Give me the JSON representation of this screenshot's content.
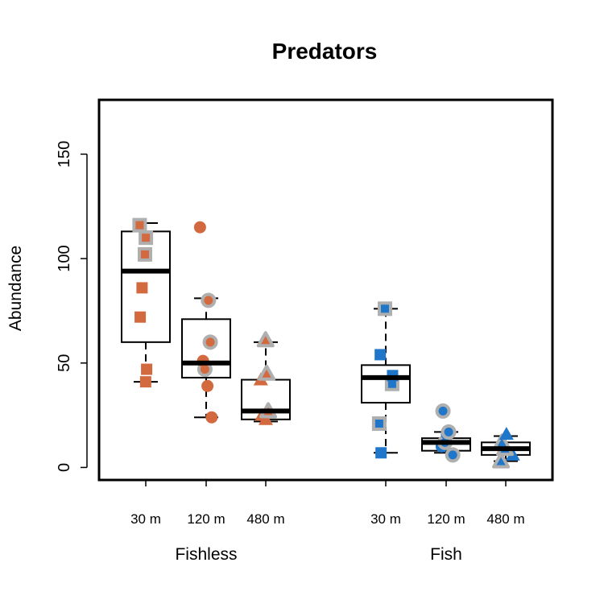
{
  "chart_data": {
    "type": "boxplot",
    "title": "Predators",
    "ylabel": "Abundance",
    "xlabel": "",
    "ylim": [
      -6,
      176
    ],
    "yticks": [
      0,
      50,
      100,
      150
    ],
    "grid": false,
    "colors": {
      "fishless": "#D2693F",
      "fish": "#2077C9",
      "highlight": "#AFAFAF"
    },
    "groups": [
      {
        "name": "Fishless",
        "color_key": "fishless",
        "boxes": [
          {
            "label": "30 m",
            "marker": "square",
            "min": 41,
            "q1": 60,
            "median": 94,
            "q3": 113,
            "max": 117,
            "points": [
              {
                "y": 41,
                "highlight": false
              },
              {
                "y": 47,
                "highlight": false
              },
              {
                "y": 72,
                "highlight": false
              },
              {
                "y": 86,
                "highlight": false
              },
              {
                "y": 102,
                "highlight": true
              },
              {
                "y": 110,
                "highlight": true
              },
              {
                "y": 116,
                "highlight": true
              }
            ]
          },
          {
            "label": "120 m",
            "marker": "circle",
            "min": 24,
            "q1": 43,
            "median": 50,
            "q3": 71,
            "max": 81,
            "points": [
              {
                "y": 24,
                "highlight": false
              },
              {
                "y": 39,
                "highlight": false
              },
              {
                "y": 47,
                "highlight": true
              },
              {
                "y": 51,
                "highlight": false
              },
              {
                "y": 60,
                "highlight": true
              },
              {
                "y": 80,
                "highlight": true
              },
              {
                "y": 115,
                "highlight": false
              }
            ]
          },
          {
            "label": "480 m",
            "marker": "triangle",
            "min": 22,
            "q1": 23,
            "median": 27,
            "q3": 42,
            "max": 60,
            "points": [
              {
                "y": 23,
                "highlight": false
              },
              {
                "y": 25,
                "highlight": false
              },
              {
                "y": 27,
                "highlight": true
              },
              {
                "y": 42,
                "highlight": false
              },
              {
                "y": 45,
                "highlight": true
              },
              {
                "y": 61,
                "highlight": true
              }
            ]
          }
        ]
      },
      {
        "name": "Fish",
        "color_key": "fish",
        "boxes": [
          {
            "label": "30 m",
            "marker": "square",
            "min": 7,
            "q1": 31,
            "median": 43,
            "q3": 49,
            "max": 76,
            "points": [
              {
                "y": 7,
                "highlight": false
              },
              {
                "y": 21,
                "highlight": true
              },
              {
                "y": 40,
                "highlight": true
              },
              {
                "y": 44,
                "highlight": false
              },
              {
                "y": 54,
                "highlight": false
              },
              {
                "y": 76,
                "highlight": true
              }
            ]
          },
          {
            "label": "120 m",
            "marker": "circle",
            "min": 7,
            "q1": 8,
            "median": 12,
            "q3": 14,
            "max": 17,
            "points": [
              {
                "y": 6,
                "highlight": true
              },
              {
                "y": 10,
                "highlight": false
              },
              {
                "y": 12,
                "highlight": true
              },
              {
                "y": 16,
                "highlight": false
              },
              {
                "y": 17,
                "highlight": true
              },
              {
                "y": 27,
                "highlight": true
              }
            ]
          },
          {
            "label": "480 m",
            "marker": "triangle",
            "min": 3,
            "q1": 6,
            "median": 9,
            "q3": 12,
            "max": 15,
            "points": [
              {
                "y": 3,
                "highlight": true
              },
              {
                "y": 6,
                "highlight": false
              },
              {
                "y": 9,
                "highlight": true
              },
              {
                "y": 12,
                "highlight": true
              },
              {
                "y": 16,
                "highlight": false
              }
            ]
          }
        ]
      }
    ]
  }
}
